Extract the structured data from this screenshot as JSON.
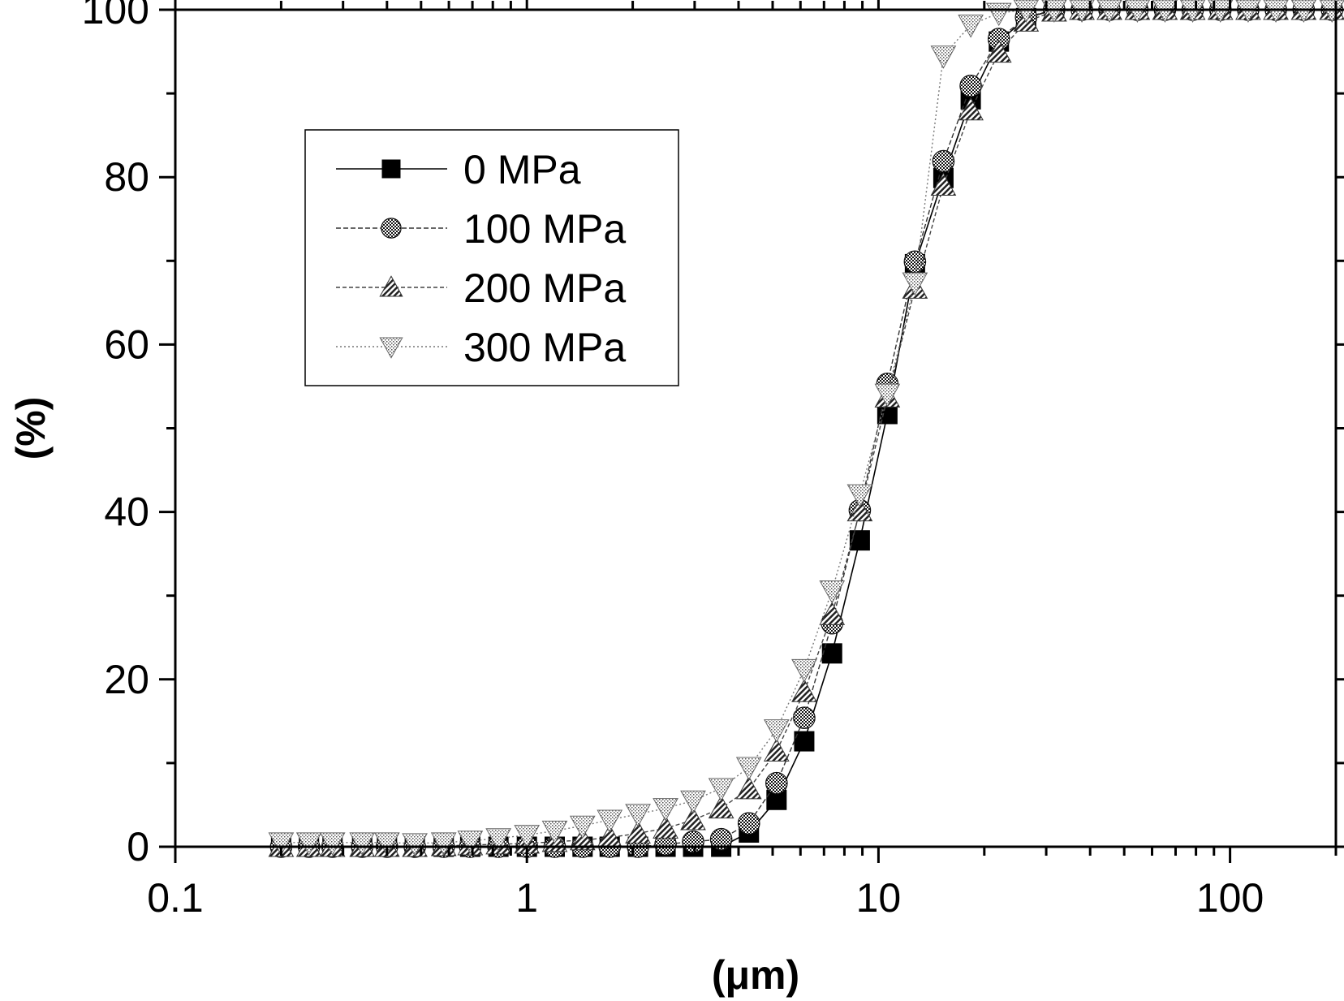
{
  "chart_data": {
    "type": "line",
    "xlabel": "(μm)",
    "ylabel": "(%)",
    "x_scale": "log",
    "xlim": [
      0.1,
      200
    ],
    "ylim": [
      0,
      100
    ],
    "x_ticks": [
      0.1,
      1,
      10,
      100
    ],
    "x_tick_labels": [
      "0.1",
      "1",
      "10",
      "100"
    ],
    "y_ticks": [
      0,
      20,
      40,
      60,
      80,
      100
    ],
    "y_tick_labels": [
      "0",
      "20",
      "40",
      "60",
      "80",
      "100"
    ],
    "grid": false,
    "legend_position": "top-left",
    "series": [
      {
        "name": "0 MPa",
        "marker": "square",
        "line": "solid",
        "color": "#000000",
        "points": [
          [
            0.2,
            0
          ],
          [
            0.24,
            0
          ],
          [
            0.28,
            0
          ],
          [
            0.34,
            0
          ],
          [
            0.4,
            0
          ],
          [
            0.48,
            0
          ],
          [
            0.58,
            0
          ],
          [
            0.69,
            0
          ],
          [
            0.83,
            0
          ],
          [
            1.0,
            0
          ],
          [
            1.2,
            0
          ],
          [
            1.44,
            0
          ],
          [
            1.72,
            0
          ],
          [
            2.07,
            0
          ],
          [
            2.48,
            0
          ],
          [
            2.97,
            0
          ],
          [
            3.57,
            0
          ],
          [
            4.28,
            1.7
          ],
          [
            5.13,
            5.6
          ],
          [
            6.15,
            12.6
          ],
          [
            7.38,
            23.1
          ],
          [
            8.85,
            36.6
          ],
          [
            10.6,
            51.7
          ],
          [
            12.7,
            69.6
          ],
          [
            15.3,
            79.9
          ],
          [
            18.3,
            89.3
          ],
          [
            22.0,
            96.2
          ],
          [
            26.3,
            99
          ],
          [
            31.6,
            100
          ],
          [
            37.9,
            100
          ],
          [
            45.4,
            100
          ],
          [
            54.5,
            100
          ],
          [
            65.3,
            100
          ],
          [
            78.3,
            100
          ],
          [
            93.9,
            100
          ],
          [
            112.6,
            100
          ],
          [
            135,
            100
          ],
          [
            162,
            100
          ],
          [
            195,
            100
          ]
        ]
      },
      {
        "name": "100 MPa",
        "marker": "circle",
        "line": "dashed",
        "color": "#333333",
        "points": [
          [
            0.2,
            0
          ],
          [
            0.24,
            0
          ],
          [
            0.28,
            0
          ],
          [
            0.34,
            0
          ],
          [
            0.4,
            0
          ],
          [
            0.48,
            0
          ],
          [
            0.58,
            0
          ],
          [
            0.69,
            0
          ],
          [
            0.83,
            0
          ],
          [
            1.0,
            0
          ],
          [
            1.2,
            0
          ],
          [
            1.44,
            0
          ],
          [
            1.72,
            0
          ],
          [
            2.07,
            0
          ],
          [
            2.48,
            0.3
          ],
          [
            2.97,
            0.6
          ],
          [
            3.57,
            0.9
          ],
          [
            4.28,
            2.8
          ],
          [
            5.13,
            7.6
          ],
          [
            6.15,
            15.4
          ],
          [
            7.38,
            26.7
          ],
          [
            8.85,
            40.2
          ],
          [
            10.6,
            55.3
          ],
          [
            12.7,
            69.9
          ],
          [
            15.3,
            81.9
          ],
          [
            18.3,
            90.9
          ],
          [
            22.0,
            96.5
          ],
          [
            26.3,
            99.1
          ],
          [
            31.6,
            100
          ],
          [
            37.9,
            100
          ],
          [
            45.4,
            100
          ],
          [
            54.5,
            100
          ],
          [
            65.3,
            100
          ],
          [
            78.3,
            100
          ],
          [
            93.9,
            100
          ],
          [
            112.6,
            100
          ],
          [
            135,
            100
          ],
          [
            162,
            100
          ],
          [
            195,
            100
          ]
        ]
      },
      {
        "name": "200 MPa",
        "marker": "triangle-up",
        "line": "dashed",
        "color": "#444444",
        "points": [
          [
            0.2,
            0
          ],
          [
            0.24,
            0
          ],
          [
            0.28,
            0
          ],
          [
            0.34,
            0
          ],
          [
            0.4,
            0
          ],
          [
            0.48,
            0
          ],
          [
            0.58,
            0.1
          ],
          [
            0.69,
            0.2
          ],
          [
            0.83,
            0.3
          ],
          [
            1.0,
            0.4
          ],
          [
            1.2,
            0.6
          ],
          [
            1.44,
            0.8
          ],
          [
            1.72,
            1.1
          ],
          [
            2.07,
            1.6
          ],
          [
            2.48,
            2.2
          ],
          [
            2.97,
            3.2
          ],
          [
            3.57,
            4.6
          ],
          [
            4.28,
            6.9
          ],
          [
            5.13,
            11.4
          ],
          [
            6.15,
            18.5
          ],
          [
            7.38,
            27.7
          ],
          [
            8.85,
            40.1
          ],
          [
            10.6,
            53.7
          ],
          [
            12.7,
            66.7
          ],
          [
            15.3,
            79
          ],
          [
            18.3,
            88
          ],
          [
            22.0,
            94.9
          ],
          [
            26.3,
            98.6
          ],
          [
            31.6,
            99.8
          ],
          [
            37.9,
            100
          ],
          [
            45.4,
            100
          ],
          [
            54.5,
            100
          ],
          [
            65.3,
            100
          ],
          [
            78.3,
            100
          ],
          [
            93.9,
            100
          ],
          [
            112.6,
            100
          ],
          [
            135,
            100
          ],
          [
            162,
            100
          ],
          [
            195,
            100
          ]
        ]
      },
      {
        "name": "300 MPa",
        "marker": "triangle-down",
        "line": "dotted",
        "color": "#777777",
        "points": [
          [
            0.2,
            0.5
          ],
          [
            0.24,
            0.5
          ],
          [
            0.28,
            0.5
          ],
          [
            0.34,
            0.5
          ],
          [
            0.4,
            0.5
          ],
          [
            0.48,
            0.4
          ],
          [
            0.58,
            0.5
          ],
          [
            0.69,
            0.7
          ],
          [
            0.83,
            1.0
          ],
          [
            1.0,
            1.4
          ],
          [
            1.2,
            1.9
          ],
          [
            1.44,
            2.5
          ],
          [
            1.72,
            3.2
          ],
          [
            2.07,
            3.9
          ],
          [
            2.48,
            4.6
          ],
          [
            2.97,
            5.5
          ],
          [
            3.57,
            7
          ],
          [
            4.28,
            9.5
          ],
          [
            5.13,
            14
          ],
          [
            6.15,
            21.2
          ],
          [
            7.38,
            30.6
          ],
          [
            8.85,
            42.1
          ],
          [
            10.6,
            54.1
          ],
          [
            12.7,
            67.4
          ],
          [
            15.3,
            94.5
          ],
          [
            18.3,
            98.2
          ],
          [
            22.0,
            99.6
          ],
          [
            26.3,
            100
          ],
          [
            31.6,
            100
          ],
          [
            37.9,
            100
          ],
          [
            45.4,
            100
          ],
          [
            54.5,
            100
          ],
          [
            65.3,
            100
          ],
          [
            78.3,
            100
          ],
          [
            93.9,
            100
          ],
          [
            112.6,
            100
          ],
          [
            135,
            100
          ],
          [
            162,
            100
          ],
          [
            195,
            100
          ]
        ]
      }
    ]
  }
}
